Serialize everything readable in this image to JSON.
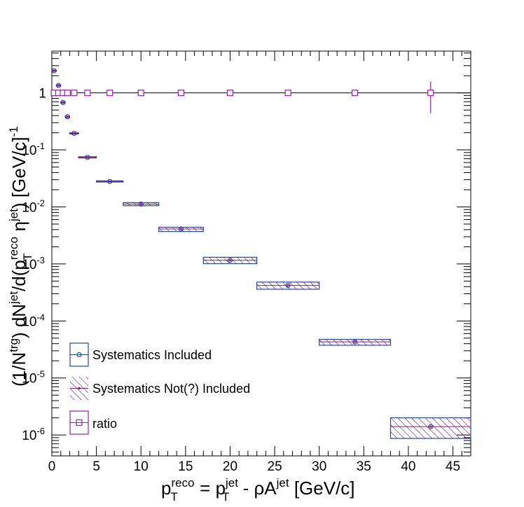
{
  "chart_data": {
    "type": "scatter",
    "x_axis": {
      "label": "p_T^reco = p_T^jet - ρA^jet [GeV/c]",
      "range": [
        0,
        47
      ],
      "scale": "linear",
      "tick_labels": [
        "0",
        "5",
        "10",
        "15",
        "20",
        "25",
        "30",
        "35",
        "40",
        "45"
      ]
    },
    "y_axis": {
      "label": "(1/N^trg) dN^jet/d(p_T^reco η^jet) [GeV/c]^-1",
      "range": [
        4.3e-07,
        5.4
      ],
      "scale": "log",
      "tick_labels": [
        "1",
        "10^-1",
        "10^-2",
        "10^-3",
        "10^-4",
        "10^-5",
        "10^-6"
      ]
    },
    "grid": false,
    "legend": {
      "placement": "bottom-left",
      "entries": [
        {
          "label": "Systematics Included",
          "marker": "open-circle",
          "color": "#2346a8"
        },
        {
          "label": "Systematics Not(?) Included",
          "marker": "filled-small-circle-hatched",
          "color": "#a0196e"
        },
        {
          "label": "ratio",
          "marker": "open-square",
          "color": "#9320b0"
        }
      ]
    },
    "series": [
      {
        "name": "Systematics Included",
        "color": "#2346a8",
        "points": [
          {
            "x": 0.25,
            "y": 2.45,
            "xlo": 0.0,
            "xhi": 0.5,
            "ylo": 2.4,
            "yhi": 2.5
          },
          {
            "x": 0.75,
            "y": 1.35,
            "xlo": 0.5,
            "xhi": 1.0,
            "ylo": 1.32,
            "yhi": 1.38
          },
          {
            "x": 1.25,
            "y": 0.68,
            "xlo": 1.0,
            "xhi": 1.5,
            "ylo": 0.665,
            "yhi": 0.695
          },
          {
            "x": 1.75,
            "y": 0.38,
            "xlo": 1.5,
            "xhi": 2.0,
            "ylo": 0.372,
            "yhi": 0.388
          },
          {
            "x": 2.5,
            "y": 0.195,
            "xlo": 2.0,
            "xhi": 3.0,
            "ylo": 0.19,
            "yhi": 0.2
          },
          {
            "x": 4.0,
            "y": 0.074,
            "xlo": 3.0,
            "xhi": 5.0,
            "ylo": 0.072,
            "yhi": 0.076
          },
          {
            "x": 6.5,
            "y": 0.028,
            "xlo": 5.0,
            "xhi": 8.0,
            "ylo": 0.0273,
            "yhi": 0.0287
          },
          {
            "x": 10.0,
            "y": 0.0112,
            "xlo": 8.0,
            "xhi": 12.0,
            "ylo": 0.0105,
            "yhi": 0.0119
          },
          {
            "x": 14.5,
            "y": 0.0041,
            "xlo": 12.0,
            "xhi": 17.0,
            "ylo": 0.0037,
            "yhi": 0.0044
          },
          {
            "x": 20.0,
            "y": 0.00116,
            "xlo": 17.0,
            "xhi": 23.0,
            "ylo": 0.00101,
            "yhi": 0.00131
          },
          {
            "x": 26.5,
            "y": 0.00042,
            "xlo": 23.0,
            "xhi": 30.0,
            "ylo": 0.00036,
            "yhi": 0.00048
          },
          {
            "x": 34.0,
            "y": 4.3e-05,
            "xlo": 30.0,
            "xhi": 38.0,
            "ylo": 3.75e-05,
            "yhi": 4.75e-05
          },
          {
            "x": 42.5,
            "y": 1.4e-06,
            "xlo": 38.0,
            "xhi": 47.0,
            "ylo": 8.7e-07,
            "yhi": 2e-06
          }
        ]
      },
      {
        "name": "Systematics Not(?) Included",
        "color": "#a0196e",
        "points": [
          {
            "x": 0.25,
            "y": 2.45
          },
          {
            "x": 0.75,
            "y": 1.35
          },
          {
            "x": 1.25,
            "y": 0.68
          },
          {
            "x": 1.75,
            "y": 0.38
          },
          {
            "x": 2.5,
            "y": 0.195
          },
          {
            "x": 4.0,
            "y": 0.074
          },
          {
            "x": 6.5,
            "y": 0.028
          },
          {
            "x": 10.0,
            "y": 0.0112
          },
          {
            "x": 14.5,
            "y": 0.0041
          },
          {
            "x": 20.0,
            "y": 0.00116
          },
          {
            "x": 26.5,
            "y": 0.00042
          },
          {
            "x": 34.0,
            "y": 4.3e-05
          },
          {
            "x": 42.5,
            "y": 1.4e-06
          }
        ]
      },
      {
        "name": "ratio",
        "color": "#9320b0",
        "points": [
          {
            "x": 0.25,
            "y": 1
          },
          {
            "x": 0.75,
            "y": 1
          },
          {
            "x": 1.25,
            "y": 1
          },
          {
            "x": 1.75,
            "y": 1
          },
          {
            "x": 2.5,
            "y": 1
          },
          {
            "x": 4.0,
            "y": 1
          },
          {
            "x": 6.5,
            "y": 1
          },
          {
            "x": 10.0,
            "y": 1
          },
          {
            "x": 14.5,
            "y": 1
          },
          {
            "x": 20.0,
            "y": 1
          },
          {
            "x": 26.5,
            "y": 1
          },
          {
            "x": 34.0,
            "y": 1
          },
          {
            "x": 42.5,
            "y": 1,
            "ylo": 0.44,
            "yhi": 1.58
          }
        ]
      }
    ],
    "reference_line": {
      "y": 1,
      "color": "#000000"
    }
  }
}
